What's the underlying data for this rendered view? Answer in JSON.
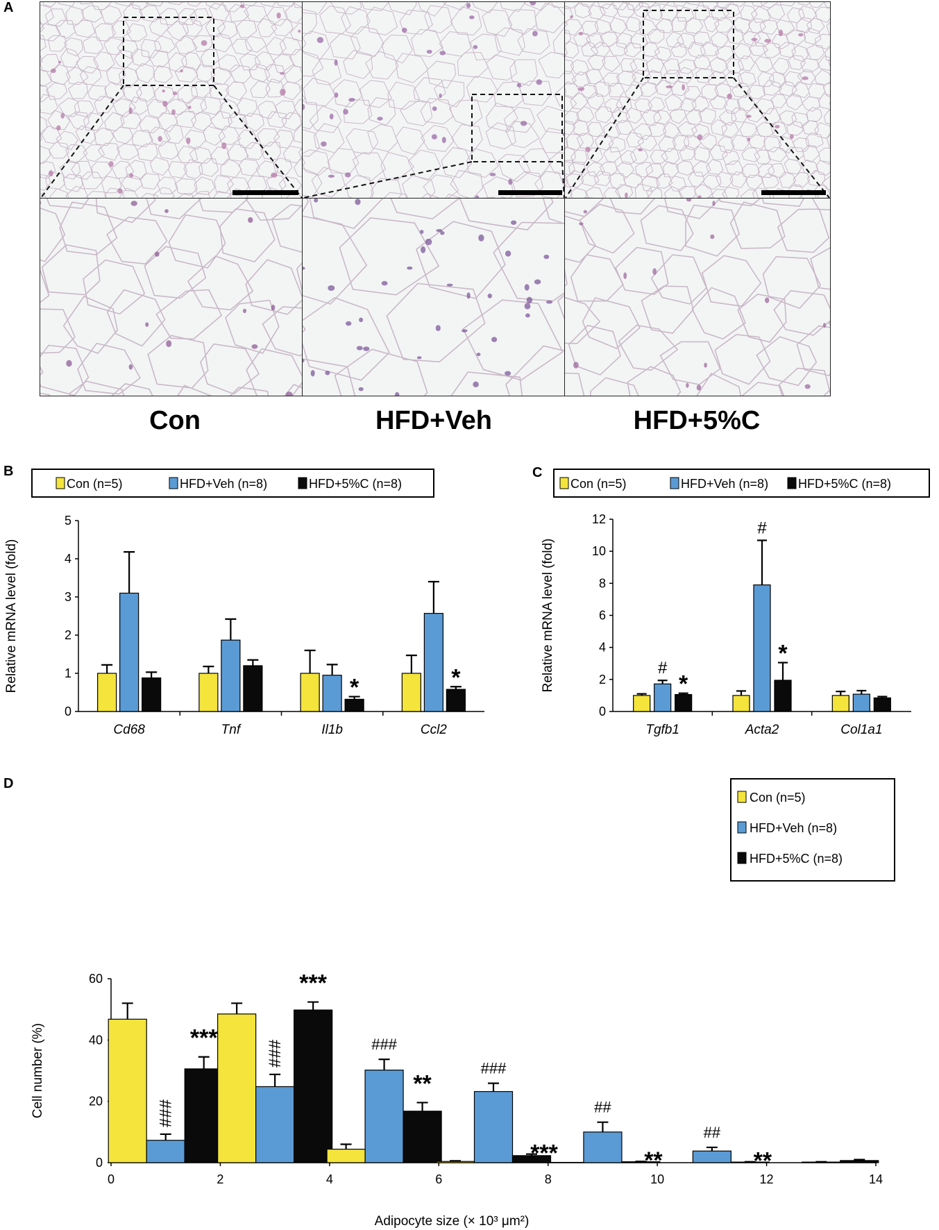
{
  "panel_a": {
    "letter": "A",
    "groups": [
      "Con",
      "HFD+Veh",
      "HFD+5%C"
    ]
  },
  "panel_b": {
    "letter": "B"
  },
  "panel_c": {
    "letter": "C"
  },
  "panel_d": {
    "letter": "D"
  },
  "colors": {
    "con": "#f4e43c",
    "veh": "#5b9bd5",
    "c5": "#0a0a0a"
  },
  "chart_data": [
    {
      "id": "B",
      "type": "bar",
      "categories": [
        "Cd68",
        "Tnf",
        "Il1b",
        "Ccl2"
      ],
      "series": [
        {
          "name": "Con (n=5)",
          "values": [
            1.0,
            1.0,
            1.0,
            1.0
          ],
          "errors": [
            0.22,
            0.18,
            0.6,
            0.47
          ]
        },
        {
          "name": "HFD+Veh (n=8)",
          "values": [
            3.1,
            1.87,
            0.95,
            2.57
          ],
          "errors": [
            1.08,
            0.55,
            0.28,
            0.83
          ]
        },
        {
          "name": "HFD+5%C (n=8)",
          "values": [
            0.88,
            1.2,
            0.32,
            0.58
          ],
          "errors": [
            0.15,
            0.15,
            0.07,
            0.07
          ]
        }
      ],
      "annotations": [
        {
          "category": "Il1b",
          "series": 2,
          "text": "*"
        },
        {
          "category": "Ccl2",
          "series": 2,
          "text": "*"
        }
      ],
      "ylabel": "Relative mRNA level (fold)",
      "ylim": [
        0,
        5
      ],
      "yticks": [
        "0",
        "1",
        "2",
        "3",
        "4",
        "5"
      ],
      "legend": "top"
    },
    {
      "id": "C",
      "type": "bar",
      "categories": [
        "Tgfb1",
        "Acta2",
        "Col1a1"
      ],
      "series": [
        {
          "name": "Con (n=5)",
          "values": [
            1.0,
            1.0,
            1.0
          ],
          "errors": [
            0.1,
            0.28,
            0.25
          ]
        },
        {
          "name": "HFD+Veh (n=8)",
          "values": [
            1.72,
            7.9,
            1.08
          ],
          "errors": [
            0.22,
            2.78,
            0.22
          ]
        },
        {
          "name": "HFD+5%C (n=8)",
          "values": [
            1.06,
            1.95,
            0.85
          ],
          "errors": [
            0.08,
            1.1,
            0.08
          ]
        }
      ],
      "annotations": [
        {
          "category": "Tgfb1",
          "series": 1,
          "text": "#"
        },
        {
          "category": "Tgfb1",
          "series": 2,
          "text": "*"
        },
        {
          "category": "Acta2",
          "series": 1,
          "text": "#"
        },
        {
          "category": "Acta2",
          "series": 2,
          "text": "*"
        }
      ],
      "ylabel": "Relative mRNA level (fold)",
      "ylim": [
        0,
        12
      ],
      "yticks": [
        "0",
        "2",
        "4",
        "6",
        "8",
        "10",
        "12"
      ],
      "legend": "top"
    },
    {
      "id": "D",
      "type": "bar",
      "x": [
        1,
        3,
        5,
        7,
        9,
        11,
        13
      ],
      "series": [
        {
          "name": "Con (n=5)",
          "values": [
            46.8,
            48.5,
            4.4,
            0.4,
            0.1,
            0.0,
            0.0
          ],
          "errors": [
            5.2,
            3.5,
            1.6,
            0.2,
            0,
            0,
            0
          ]
        },
        {
          "name": "HFD+Veh (n=8)",
          "values": [
            7.3,
            24.8,
            30.2,
            23.2,
            10.0,
            3.8,
            0.2
          ],
          "errors": [
            2.0,
            4.0,
            3.5,
            2.7,
            3.2,
            1.2,
            0.1
          ]
        },
        {
          "name": "HFD+5%C (n=8)",
          "values": [
            30.6,
            49.8,
            16.8,
            2.3,
            0.3,
            0.2,
            0.7
          ],
          "errors": [
            3.9,
            2.6,
            2.8,
            0.5,
            0.1,
            0.1,
            0.3
          ]
        }
      ],
      "annotations": [
        {
          "x": 1,
          "series": 1,
          "text": "###",
          "rotate": true
        },
        {
          "x": 1,
          "series": 2,
          "text": "***"
        },
        {
          "x": 3,
          "series": 1,
          "text": "###",
          "rotate": true
        },
        {
          "x": 3,
          "series": 2,
          "text": "***"
        },
        {
          "x": 5,
          "series": 1,
          "text": "###"
        },
        {
          "x": 5,
          "series": 2,
          "text": "**"
        },
        {
          "x": 7,
          "series": 1,
          "text": "###"
        },
        {
          "x": 7,
          "series": 2,
          "text": "***"
        },
        {
          "x": 9,
          "series": 1,
          "text": "##"
        },
        {
          "x": 9,
          "series": 2,
          "text": "**"
        },
        {
          "x": 11,
          "series": 1,
          "text": "##"
        },
        {
          "x": 11,
          "series": 2,
          "text": "**"
        }
      ],
      "xlabel": "Adipocyte size (× 10³ μm²)",
      "ylabel": "Cell number (%)",
      "xlim": [
        0,
        14
      ],
      "ylim": [
        0,
        60
      ],
      "xticks": [
        "0",
        "2",
        "4",
        "6",
        "8",
        "10",
        "12",
        "14"
      ],
      "yticks": [
        "0",
        "20",
        "40",
        "60"
      ],
      "legend": "top-right"
    }
  ]
}
